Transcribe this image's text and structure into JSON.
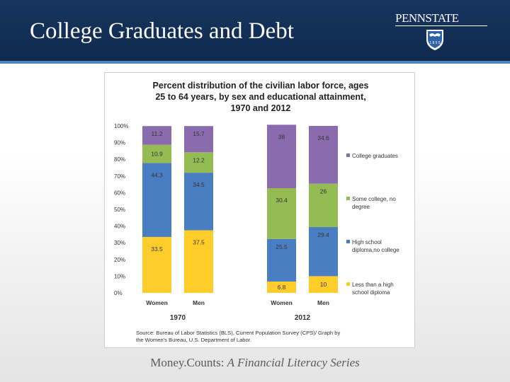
{
  "slide": {
    "title": "College Graduates and Debt",
    "logo_text": "PENNSTATE",
    "logo_year": "1 8 5 5",
    "footer_prefix": "Money.Counts: ",
    "footer_series": "A Financial Literacy Series"
  },
  "colors": {
    "header": "#16355f",
    "accent": "#4f84c4"
  },
  "chart_data": {
    "type": "bar",
    "stacked": true,
    "title_lines": [
      "Percent distribution of the civilian labor force, ages",
      "25 to 64 years, by sex and educational attainment,",
      "1970 and 2012"
    ],
    "groups": [
      {
        "label": "1970",
        "categories": [
          "Women",
          "Men"
        ]
      },
      {
        "label": "2012",
        "categories": [
          "Women",
          "Men"
        ]
      }
    ],
    "y_ticks": [
      "0%",
      "10%",
      "20%",
      "30%",
      "40%",
      "50%",
      "60%",
      "70%",
      "80%",
      "90%",
      "100%"
    ],
    "ylim": [
      0,
      100
    ],
    "series": [
      {
        "name": "Less than a high school diploma",
        "legend_lines": [
          "Less than a high",
          "school diploma"
        ],
        "color": "#ffcc2a",
        "values": [
          33.5,
          37.5,
          6.8,
          10
        ]
      },
      {
        "name": "High school diploma,no college",
        "legend_lines": [
          "High school",
          "diploma,no college"
        ],
        "color": "#4a7ec2",
        "values": [
          44.3,
          34.5,
          25.5,
          29.4
        ]
      },
      {
        "name": "Some college, no degree",
        "legend_lines": [
          "Some college, no",
          "degree"
        ],
        "color": "#94bc52",
        "values": [
          10.9,
          12.2,
          30.4,
          26
        ]
      },
      {
        "name": "College graduates",
        "legend_lines": [
          "College graduates"
        ],
        "color": "#8a6bae",
        "values": [
          11.2,
          15.7,
          38,
          34.6
        ]
      }
    ],
    "legend_position": "right",
    "grid": false,
    "source_lines": [
      "Source: Bureau of Labor Statistics (BLS), Current Population Survey (CPS)/ Graph by",
      "the Women's Bureau, U.S. Department of Labor."
    ]
  }
}
